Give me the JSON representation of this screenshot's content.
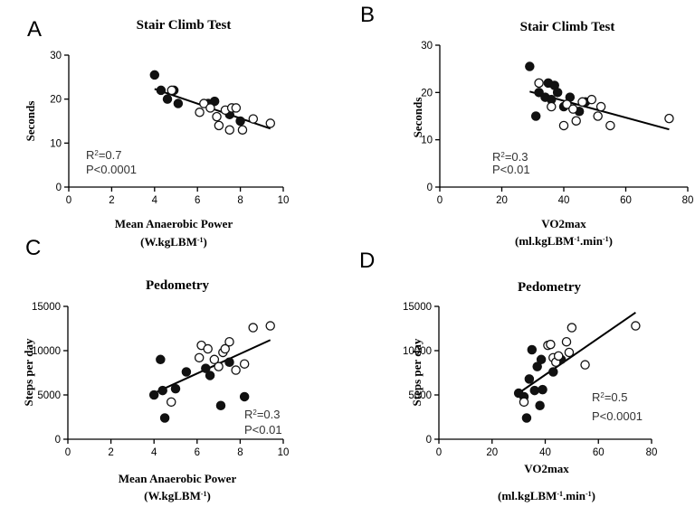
{
  "chart_data": [
    {
      "panel": "A",
      "type": "scatter",
      "title": "Stair Climb Test",
      "xlabel": "Mean Anaerobic Power",
      "xlabel_unit": [
        "(W.kgLBM",
        "-1",
        ")"
      ],
      "ylabel": "Seconds",
      "xlim": [
        0,
        10
      ],
      "ylim": [
        0,
        30
      ],
      "xticks": [
        0,
        2,
        4,
        6,
        8,
        10
      ],
      "yticks": [
        0,
        10,
        20,
        30
      ],
      "stat_r2": [
        "R",
        "2",
        "=0.7"
      ],
      "stat_p": "P<0.0001",
      "series": [
        {
          "marker": "filled",
          "points": [
            [
              4.0,
              25.5
            ],
            [
              4.3,
              22.0
            ],
            [
              4.6,
              20.0
            ],
            [
              4.9,
              22.0
            ],
            [
              5.1,
              19.0
            ],
            [
              6.5,
              19.0
            ],
            [
              6.8,
              19.5
            ],
            [
              7.5,
              16.5
            ],
            [
              8.0,
              15.0
            ]
          ]
        },
        {
          "marker": "open",
          "points": [
            [
              4.8,
              22.0
            ],
            [
              6.1,
              17.0
            ],
            [
              6.3,
              19.0
            ],
            [
              6.6,
              18.0
            ],
            [
              6.9,
              16.0
            ],
            [
              7.0,
              14.0
            ],
            [
              7.3,
              17.5
            ],
            [
              7.5,
              13.0
            ],
            [
              7.6,
              18.0
            ],
            [
              7.8,
              18.0
            ],
            [
              8.1,
              13.0
            ],
            [
              8.6,
              15.5
            ],
            [
              9.4,
              14.5
            ]
          ]
        }
      ],
      "fit": [
        [
          4.0,
          22.3
        ],
        [
          9.4,
          13.3
        ]
      ]
    },
    {
      "panel": "B",
      "type": "scatter",
      "title": "Stair Climb Test",
      "xlabel": "VO2max",
      "xlabel_unit": [
        "(ml.kgLBM",
        "-1",
        ".min",
        "-1",
        ")"
      ],
      "ylabel": "Seconds",
      "xlim": [
        0,
        80
      ],
      "ylim": [
        0,
        30
      ],
      "xticks": [
        0,
        20,
        40,
        60,
        80
      ],
      "yticks": [
        0,
        10,
        20,
        30
      ],
      "stat_r2": [
        "R",
        "2",
        "=0.3"
      ],
      "stat_p": "P<0.01",
      "series": [
        {
          "marker": "filled",
          "points": [
            [
              29.0,
              25.5
            ],
            [
              31.0,
              15.0
            ],
            [
              32.0,
              20.0
            ],
            [
              34.0,
              19.0
            ],
            [
              35.0,
              22.0
            ],
            [
              36.0,
              18.5
            ],
            [
              37.0,
              21.5
            ],
            [
              38.0,
              20.0
            ],
            [
              40.0,
              17.0
            ],
            [
              42.0,
              19.0
            ],
            [
              45.0,
              16.0
            ],
            [
              47.0,
              18.0
            ]
          ]
        },
        {
          "marker": "open",
          "points": [
            [
              32.0,
              22.0
            ],
            [
              36.0,
              17.0
            ],
            [
              40.0,
              13.0
            ],
            [
              41.0,
              17.5
            ],
            [
              43.0,
              16.5
            ],
            [
              44.0,
              14.0
            ],
            [
              46.0,
              18.0
            ],
            [
              49.0,
              18.5
            ],
            [
              51.0,
              15.0
            ],
            [
              52.0,
              17.0
            ],
            [
              55.0,
              13.0
            ],
            [
              74.0,
              14.5
            ]
          ]
        }
      ],
      "fit": [
        [
          29.0,
          20.2
        ],
        [
          74.0,
          12.2
        ]
      ]
    },
    {
      "panel": "C",
      "type": "scatter",
      "title": "Pedometry",
      "xlabel": "Mean Anaerobic Power",
      "xlabel_unit": [
        "(W.kgLBM",
        "-1",
        ")"
      ],
      "ylabel": "Steps per day",
      "xlim": [
        0,
        10
      ],
      "ylim": [
        0,
        15000
      ],
      "xticks": [
        0,
        2,
        4,
        6,
        8,
        10
      ],
      "yticks": [
        0,
        5000,
        10000,
        15000
      ],
      "stat_r2": [
        "R",
        "2",
        "=0.3"
      ],
      "stat_p": "P<0.01",
      "series": [
        {
          "marker": "filled",
          "points": [
            [
              4.0,
              5000
            ],
            [
              4.3,
              9000
            ],
            [
              4.4,
              5500
            ],
            [
              4.5,
              2400
            ],
            [
              5.0,
              5700
            ],
            [
              5.5,
              7600
            ],
            [
              6.4,
              8000
            ],
            [
              6.6,
              7200
            ],
            [
              7.1,
              3800
            ],
            [
              7.5,
              8700
            ],
            [
              8.2,
              4800
            ]
          ]
        },
        {
          "marker": "open",
          "points": [
            [
              4.8,
              4200
            ],
            [
              6.1,
              9200
            ],
            [
              6.2,
              10600
            ],
            [
              6.5,
              10200
            ],
            [
              6.8,
              9000
            ],
            [
              7.0,
              8200
            ],
            [
              7.2,
              9800
            ],
            [
              7.3,
              10200
            ],
            [
              7.5,
              11000
            ],
            [
              7.8,
              7800
            ],
            [
              8.2,
              8500
            ],
            [
              8.6,
              12600
            ],
            [
              9.4,
              12800
            ]
          ]
        }
      ],
      "fit": [
        [
          4.0,
          5200
        ],
        [
          9.4,
          11200
        ]
      ]
    },
    {
      "panel": "D",
      "type": "scatter",
      "title": "Pedometry",
      "xlabel": "VO2max",
      "xlabel_unit": [
        "(ml.kgLBM",
        "-1",
        ".min",
        "-1",
        ")"
      ],
      "ylabel": "Steps per day",
      "xlim": [
        0,
        80
      ],
      "ylim": [
        0,
        15000
      ],
      "xticks": [
        0,
        20,
        40,
        60,
        80
      ],
      "yticks": [
        0,
        5000,
        10000,
        15000
      ],
      "stat_r2": [
        "R",
        "2",
        "=0.5"
      ],
      "stat_p": "P<0.0001",
      "series": [
        {
          "marker": "filled",
          "points": [
            [
              30.0,
              5200
            ],
            [
              32.0,
              4800
            ],
            [
              33.0,
              2400
            ],
            [
              34.0,
              6800
            ],
            [
              35.0,
              10100
            ],
            [
              36.0,
              5500
            ],
            [
              37.0,
              8200
            ],
            [
              38.0,
              3800
            ],
            [
              38.5,
              9000
            ],
            [
              39.0,
              5600
            ],
            [
              43.0,
              7600
            ],
            [
              46.0,
              9000
            ]
          ]
        },
        {
          "marker": "open",
          "points": [
            [
              32.0,
              4200
            ],
            [
              41.0,
              10600
            ],
            [
              42.0,
              10700
            ],
            [
              43.0,
              9200
            ],
            [
              44.0,
              8700
            ],
            [
              45.0,
              9400
            ],
            [
              48.0,
              11000
            ],
            [
              49.0,
              9800
            ],
            [
              50.0,
              12600
            ],
            [
              55.0,
              8400
            ],
            [
              74.0,
              12800
            ]
          ]
        }
      ],
      "fit": [
        [
          29.0,
          5000
        ],
        [
          74.0,
          14300
        ]
      ]
    }
  ]
}
